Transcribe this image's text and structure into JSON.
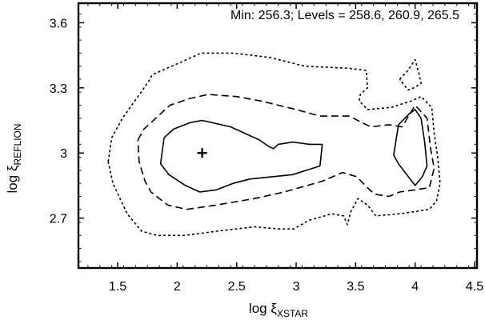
{
  "chart_data": {
    "type": "contour",
    "annotation": "Min: 256.3; Levels = 258.6, 260.9, 265.5",
    "xlabel": {
      "prefix": "log ξ",
      "sub": "XSTAR"
    },
    "ylabel": {
      "prefix": "log ξ",
      "sub": "REFLION"
    },
    "xlim": [
      1.17,
      4.52
    ],
    "ylim": [
      2.47,
      3.69
    ],
    "xticks": [
      {
        "value": 1.5,
        "label": "1.5"
      },
      {
        "value": 2,
        "label": "2"
      },
      {
        "value": 2.5,
        "label": "2.5"
      },
      {
        "value": 3,
        "label": "3"
      },
      {
        "value": 3.5,
        "label": "3.5"
      },
      {
        "value": 4,
        "label": "4"
      },
      {
        "value": 4.5,
        "label": "4.5"
      }
    ],
    "yticks": [
      {
        "value": 2.7,
        "label": "2.7"
      },
      {
        "value": 3,
        "label": "3"
      },
      {
        "value": 3.3,
        "label": "3.3"
      },
      {
        "value": 3.6,
        "label": "3.6"
      }
    ],
    "minimum": {
      "x": 2.21,
      "y": 3.0
    },
    "grid": false,
    "series": [
      {
        "level": 258.6,
        "style": "solid",
        "contours": [
          [
            [
              1.89,
              3.07
            ],
            [
              1.97,
              3.11
            ],
            [
              2.11,
              3.14
            ],
            [
              2.21,
              3.15
            ],
            [
              2.45,
              3.12
            ],
            [
              2.69,
              3.06
            ],
            [
              2.77,
              3.03
            ],
            [
              2.81,
              3.02
            ],
            [
              2.85,
              3.04
            ],
            [
              2.97,
              3.05
            ],
            [
              3.11,
              3.04
            ],
            [
              3.22,
              3.04
            ],
            [
              3.2,
              2.94
            ],
            [
              2.97,
              2.9
            ],
            [
              2.61,
              2.88
            ],
            [
              2.47,
              2.86
            ],
            [
              2.33,
              2.83
            ],
            [
              2.19,
              2.82
            ],
            [
              2.07,
              2.85
            ],
            [
              1.93,
              2.9
            ],
            [
              1.86,
              2.95
            ],
            [
              1.89,
              3.07
            ]
          ],
          [
            [
              3.86,
              3.13
            ],
            [
              3.95,
              3.18
            ],
            [
              4.0,
              3.2
            ],
            [
              4.05,
              3.16
            ],
            [
              4.08,
              3.05
            ],
            [
              4.1,
              2.94
            ],
            [
              4.06,
              2.89
            ],
            [
              4.0,
              2.85
            ],
            [
              3.93,
              2.9
            ],
            [
              3.86,
              2.95
            ],
            [
              3.82,
              2.99
            ],
            [
              3.86,
              3.13
            ]
          ]
        ]
      },
      {
        "level": 260.9,
        "style": "dashed",
        "contours": [
          [
            [
              1.67,
              3.06
            ],
            [
              1.72,
              3.11
            ],
            [
              1.84,
              3.17
            ],
            [
              1.94,
              3.22
            ],
            [
              2.1,
              3.25
            ],
            [
              2.26,
              3.27
            ],
            [
              2.5,
              3.26
            ],
            [
              2.7,
              3.24
            ],
            [
              3.0,
              3.2
            ],
            [
              3.2,
              3.17
            ],
            [
              3.45,
              3.17
            ],
            [
              3.55,
              3.14
            ],
            [
              3.63,
              3.12
            ],
            [
              3.78,
              3.13
            ],
            [
              3.89,
              3.12
            ],
            [
              4.0,
              3.22
            ],
            [
              4.1,
              3.16
            ],
            [
              4.13,
              3.02
            ],
            [
              4.16,
              2.93
            ],
            [
              4.12,
              2.84
            ],
            [
              4.0,
              2.83
            ],
            [
              3.87,
              2.82
            ],
            [
              3.78,
              2.8
            ],
            [
              3.66,
              2.81
            ],
            [
              3.6,
              2.84
            ],
            [
              3.51,
              2.89
            ],
            [
              3.39,
              2.91
            ],
            [
              3.22,
              2.87
            ],
            [
              2.9,
              2.82
            ],
            [
              2.65,
              2.79
            ],
            [
              2.33,
              2.76
            ],
            [
              2.08,
              2.74
            ],
            [
              1.92,
              2.76
            ],
            [
              1.78,
              2.82
            ],
            [
              1.73,
              2.87
            ],
            [
              1.68,
              2.96
            ],
            [
              1.67,
              3.06
            ]
          ]
        ]
      },
      {
        "level": 265.5,
        "style": "dotted",
        "contours": [
          [
            [
              1.42,
              2.96
            ],
            [
              1.45,
              3.07
            ],
            [
              1.54,
              3.16
            ],
            [
              1.67,
              3.26
            ],
            [
              1.76,
              3.33
            ],
            [
              1.79,
              3.36
            ],
            [
              2.08,
              3.43
            ],
            [
              2.2,
              3.46
            ],
            [
              2.47,
              3.46
            ],
            [
              2.78,
              3.44
            ],
            [
              3.07,
              3.4
            ],
            [
              3.45,
              3.39
            ],
            [
              3.59,
              3.38
            ],
            [
              3.6,
              3.3
            ],
            [
              3.54,
              3.27
            ],
            [
              3.53,
              3.24
            ],
            [
              3.6,
              3.2
            ],
            [
              3.8,
              3.21
            ],
            [
              3.97,
              3.24
            ],
            [
              4.05,
              3.26
            ],
            [
              4.14,
              3.21
            ],
            [
              4.16,
              3.09
            ],
            [
              4.19,
              2.98
            ],
            [
              4.21,
              2.86
            ],
            [
              4.18,
              2.78
            ],
            [
              4.12,
              2.74
            ],
            [
              4.0,
              2.73
            ],
            [
              3.87,
              2.72
            ],
            [
              3.67,
              2.71
            ],
            [
              3.6,
              2.76
            ],
            [
              3.52,
              2.79
            ],
            [
              3.46,
              2.73
            ],
            [
              3.43,
              2.67
            ],
            [
              3.4,
              2.71
            ],
            [
              3.3,
              2.72
            ],
            [
              3.11,
              2.69
            ],
            [
              2.98,
              2.65
            ],
            [
              2.85,
              2.65
            ],
            [
              2.65,
              2.66
            ],
            [
              2.34,
              2.64
            ],
            [
              2.06,
              2.62
            ],
            [
              1.83,
              2.62
            ],
            [
              1.7,
              2.64
            ],
            [
              1.58,
              2.72
            ],
            [
              1.46,
              2.86
            ],
            [
              1.42,
              2.96
            ]
          ],
          [
            [
              3.87,
              3.34
            ],
            [
              3.94,
              3.38
            ],
            [
              4.0,
              3.43
            ],
            [
              4.03,
              3.37
            ],
            [
              4.05,
              3.32
            ],
            [
              3.99,
              3.3
            ],
            [
              3.94,
              3.29
            ],
            [
              3.87,
              3.34
            ]
          ]
        ]
      }
    ]
  }
}
